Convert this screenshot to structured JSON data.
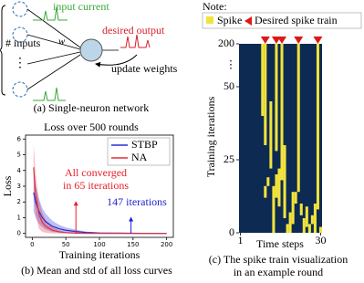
{
  "diagram": {
    "input_label": "input current",
    "output_label": "desired output",
    "inputs_label": "# inputs",
    "weight_label": "w",
    "update_label": "update weights",
    "caption": "(a) Single-neuron network"
  },
  "chart_data": [
    {
      "type": "line",
      "title": "Loss over 500 rounds",
      "x_label": "Training iterations",
      "y_label": "Loss",
      "caption": "(b) Mean and std of all loss curves",
      "x": [
        2,
        5,
        10,
        15,
        20,
        30,
        40,
        50,
        65,
        80,
        100,
        120,
        147,
        175,
        200
      ],
      "series": [
        {
          "name": "STBP",
          "color": "#2b2bd0",
          "values": [
            2.6,
            2.0,
            1.4,
            1.0,
            0.75,
            0.45,
            0.3,
            0.2,
            0.12,
            0.06,
            0.03,
            0.02,
            0.01,
            0,
            0
          ],
          "std": [
            1.2,
            1.0,
            0.8,
            0.6,
            0.5,
            0.35,
            0.25,
            0.18,
            0.12,
            0.06,
            0.03,
            0.02,
            0.01,
            0,
            0
          ]
        },
        {
          "name": "NA",
          "color": "#e03040",
          "values": [
            4.2,
            2.5,
            1.2,
            0.7,
            0.45,
            0.2,
            0.1,
            0.05,
            0.02,
            0,
            0,
            0,
            0,
            0,
            0
          ],
          "std": [
            1.5,
            1.3,
            0.9,
            0.6,
            0.4,
            0.2,
            0.1,
            0.05,
            0.02,
            0,
            0,
            0,
            0,
            0,
            0
          ]
        }
      ],
      "xlim": [
        -10,
        210
      ],
      "xticks": [
        0,
        50,
        100,
        150,
        200
      ],
      "ylim": [
        -0.25,
        6.25
      ],
      "yticks": [
        0,
        1,
        2,
        3,
        4,
        5,
        6
      ],
      "legend": "upper right",
      "annotations": [
        {
          "lines": [
            "All converged",
            "in 65 iterations"
          ],
          "x": 65,
          "color": "#e8202a"
        },
        {
          "lines": [
            "147 iterations"
          ],
          "x": 147,
          "color": "#2020d0"
        }
      ]
    },
    {
      "type": "raster",
      "note": "Note:",
      "legend": {
        "spike": "Spike",
        "desired": "Desired spike train"
      },
      "x_label": "Time steps",
      "y_label": "Training iterations",
      "caption": [
        "(c) The spike train visualization",
        "in an example round"
      ],
      "spike_color": "#f2e33c",
      "desired_color": "#e01818",
      "background": "#0d2a52",
      "xlim": [
        1,
        30
      ],
      "xticks": [
        1,
        30
      ],
      "ylim": [
        0,
        200
      ],
      "yticks": [
        0,
        25,
        50,
        200
      ],
      "ybreak_label": "⋮",
      "desired": [
        10,
        14,
        16,
        22,
        29
      ],
      "spikes": [
        {
          "t": 9,
          "from": 40,
          "to": 200
        },
        {
          "t": 10,
          "from": 30,
          "to": 200
        },
        {
          "t": 14,
          "from": 28,
          "to": 200
        },
        {
          "t": 16,
          "from": 18,
          "to": 200
        },
        {
          "t": 22,
          "from": 14,
          "to": 200
        },
        {
          "t": 29,
          "from": 8,
          "to": 200
        },
        {
          "t": 17,
          "from": 5,
          "to": 30
        },
        {
          "t": 28,
          "from": 0,
          "to": 10
        },
        {
          "t": 12,
          "from": 22,
          "to": 45
        },
        {
          "t": 13,
          "from": 0,
          "to": 16
        },
        {
          "t": 15,
          "from": 9,
          "to": 22
        },
        {
          "t": 19,
          "from": 0,
          "to": 7
        },
        {
          "t": 20,
          "from": 3,
          "to": 14
        },
        {
          "t": 24,
          "from": 0,
          "to": 5
        },
        {
          "t": 25,
          "from": 2,
          "to": 9
        },
        {
          "t": 26,
          "from": 0,
          "to": 3
        },
        {
          "t": 30,
          "from": 0,
          "to": 2
        },
        {
          "t": 11,
          "from": 16,
          "to": 19
        },
        {
          "t": 10,
          "from": 12,
          "to": 16
        },
        {
          "t": 18,
          "from": 0,
          "to": 3
        },
        {
          "t": 21,
          "from": 10,
          "to": 14
        },
        {
          "t": 23,
          "from": 6,
          "to": 10
        },
        {
          "t": 27,
          "from": 3,
          "to": 6
        },
        {
          "t": 14,
          "from": 12,
          "to": 20
        }
      ]
    }
  ]
}
